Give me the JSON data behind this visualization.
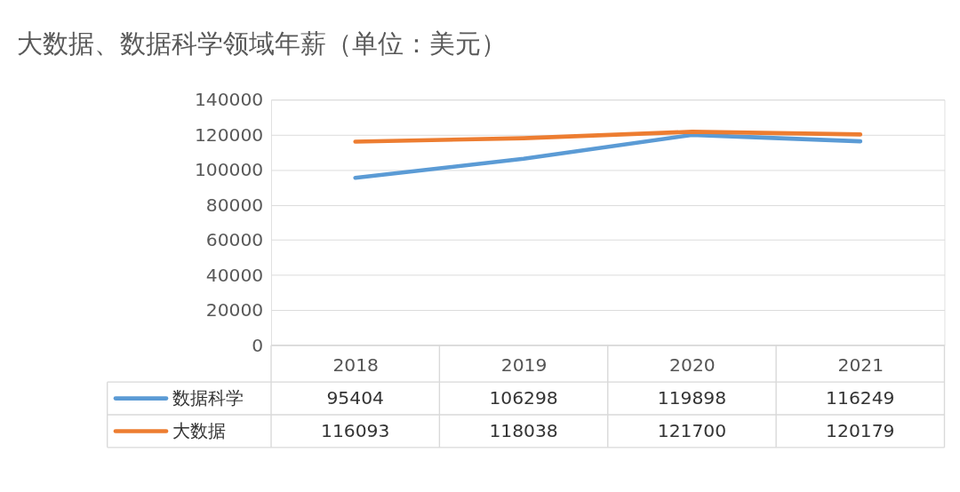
{
  "chart_data": {
    "type": "line",
    "title": "大数据、数据科学领域年薪（单位：美元）",
    "categories": [
      "2018",
      "2019",
      "2020",
      "2021"
    ],
    "series": [
      {
        "name": "数据科学",
        "color": "#5b9bd5",
        "values": [
          95404,
          106298,
          119898,
          116249
        ]
      },
      {
        "name": "大数据",
        "color": "#ed7d31",
        "values": [
          116093,
          118038,
          121700,
          120179
        ]
      }
    ],
    "ylim": [
      0,
      140000
    ],
    "yticks": [
      0,
      20000,
      40000,
      60000,
      80000,
      100000,
      120000,
      140000
    ],
    "grid": "y",
    "legend": "bottom left",
    "data_labels": true,
    "marker": "none",
    "line_style": "solid"
  }
}
